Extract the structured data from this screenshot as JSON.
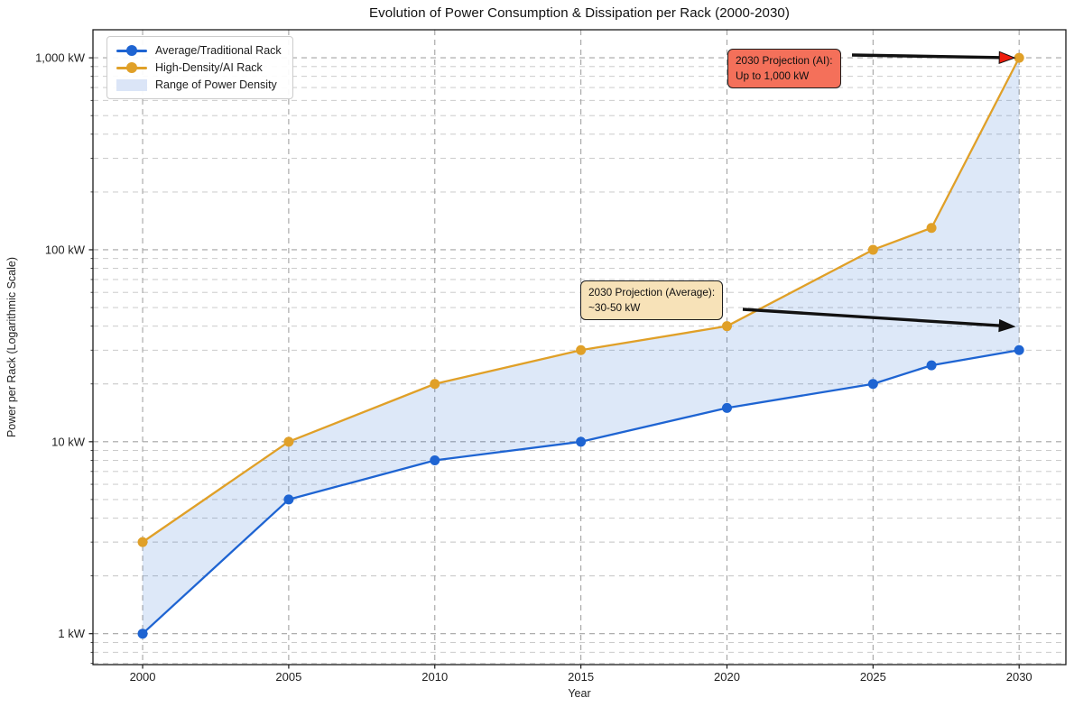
{
  "chart_data": {
    "type": "line",
    "title": "Evolution of Power Consumption & Dissipation per Rack (2000-2030)",
    "xlabel": "Year",
    "ylabel": "Power per Rack (Logarithmic Scale)",
    "y_scale": "log",
    "grid": true,
    "legend_position": "upper-left",
    "x": [
      2000,
      2005,
      2010,
      2015,
      2020,
      2025,
      2027,
      2030
    ],
    "series": [
      {
        "name": "Average/Traditional Rack",
        "color": "#1e64d2",
        "values": [
          1,
          5,
          8,
          10,
          15,
          20,
          25,
          30
        ]
      },
      {
        "name": "High-Density/AI Rack",
        "color": "#e0a028",
        "values": [
          3,
          10,
          20,
          30,
          40,
          100,
          130,
          1000
        ]
      }
    ],
    "band": {
      "name": "Range of Power Density",
      "color": "#1e64d2",
      "opacity": 0.15,
      "legend_color": "#dbe5f7"
    },
    "x_ticks": [
      2000,
      2005,
      2010,
      2015,
      2020,
      2025,
      2030
    ],
    "y_ticks": [
      {
        "value": 1,
        "label": "1 kW"
      },
      {
        "value": 10,
        "label": "10 kW"
      },
      {
        "value": 100,
        "label": "100 kW"
      },
      {
        "value": 1000,
        "label": "1,000 kW"
      }
    ],
    "xlim": [
      1998.3,
      2031.6
    ],
    "ylim": [
      0.69,
      1400
    ],
    "annotations": [
      {
        "lines": [
          "2030 Projection (AI):",
          "Up to 1,000 kW"
        ],
        "box_color": "#f4705a",
        "border_color": "#1c1c1c",
        "arrow_color": "#111111",
        "arrowhead_color": "#ee1c0c",
        "target": [
          2030,
          1000
        ]
      },
      {
        "lines": [
          "2030 Projection (Average):",
          "~30-50 kW"
        ],
        "box_color": "#f7e2b8",
        "border_color": "#1c1c1c",
        "arrow_color": "#111111",
        "arrowhead_color": "#111111",
        "target": [
          2030,
          40
        ]
      }
    ]
  }
}
